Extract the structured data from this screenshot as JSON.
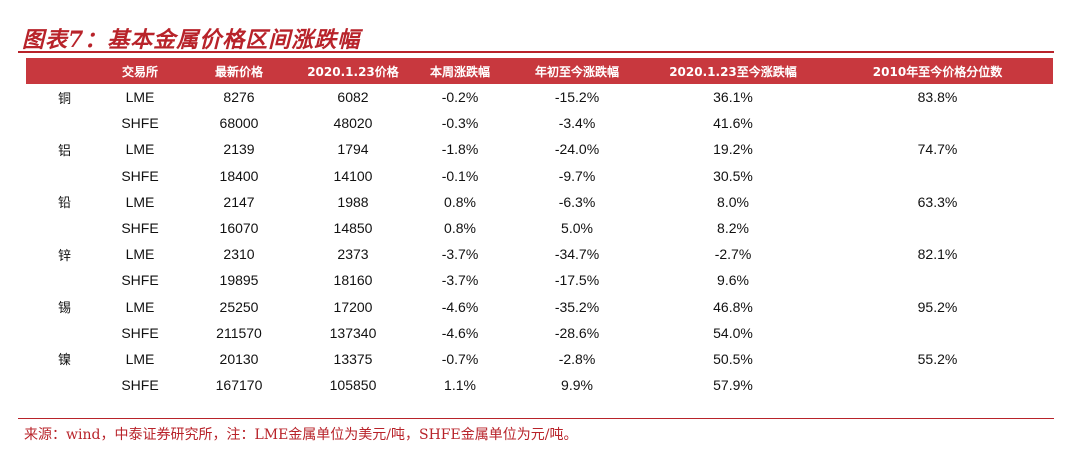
{
  "title": "图表7：基本金属价格区间涨跌幅",
  "columns": [
    "",
    "交易所",
    "最新价格",
    "2020.1.23价格",
    "本周涨跌幅",
    "年初至今涨跌幅",
    "2020.1.23至今涨跌幅",
    "2010年至今价格分位数"
  ],
  "rows": [
    {
      "metal": "铜",
      "exchange": "LME",
      "latest": "8276",
      "p0123": "6082",
      "week": "-0.2%",
      "ytd": "-15.2%",
      "since0123": "36.1%",
      "pct2010": "83.8%"
    },
    {
      "metal": "",
      "exchange": "SHFE",
      "latest": "68000",
      "p0123": "48020",
      "week": "-0.3%",
      "ytd": "-3.4%",
      "since0123": "41.6%",
      "pct2010": ""
    },
    {
      "metal": "铝",
      "exchange": "LME",
      "latest": "2139",
      "p0123": "1794",
      "week": "-1.8%",
      "ytd": "-24.0%",
      "since0123": "19.2%",
      "pct2010": "74.7%"
    },
    {
      "metal": "",
      "exchange": "SHFE",
      "latest": "18400",
      "p0123": "14100",
      "week": "-0.1%",
      "ytd": "-9.7%",
      "since0123": "30.5%",
      "pct2010": ""
    },
    {
      "metal": "铅",
      "exchange": "LME",
      "latest": "2147",
      "p0123": "1988",
      "week": "0.8%",
      "ytd": "-6.3%",
      "since0123": "8.0%",
      "pct2010": "63.3%"
    },
    {
      "metal": "",
      "exchange": "SHFE",
      "latest": "16070",
      "p0123": "14850",
      "week": "0.8%",
      "ytd": "5.0%",
      "since0123": "8.2%",
      "pct2010": ""
    },
    {
      "metal": "锌",
      "exchange": "LME",
      "latest": "2310",
      "p0123": "2373",
      "week": "-3.7%",
      "ytd": "-34.7%",
      "since0123": "-2.7%",
      "pct2010": "82.1%"
    },
    {
      "metal": "",
      "exchange": "SHFE",
      "latest": "19895",
      "p0123": "18160",
      "week": "-3.7%",
      "ytd": "-17.5%",
      "since0123": "9.6%",
      "pct2010": ""
    },
    {
      "metal": "锡",
      "exchange": "LME",
      "latest": "25250",
      "p0123": "17200",
      "week": "-4.6%",
      "ytd": "-35.2%",
      "since0123": "46.8%",
      "pct2010": "95.2%"
    },
    {
      "metal": "",
      "exchange": "SHFE",
      "latest": "211570",
      "p0123": "137340",
      "week": "-4.6%",
      "ytd": "-28.6%",
      "since0123": "54.0%",
      "pct2010": ""
    },
    {
      "metal": "镍",
      "exchange": "LME",
      "latest": "20130",
      "p0123": "13375",
      "week": "-0.7%",
      "ytd": "-2.8%",
      "since0123": "50.5%",
      "pct2010": "55.2%"
    },
    {
      "metal": "",
      "exchange": "SHFE",
      "latest": "167170",
      "p0123": "105850",
      "week": "1.1%",
      "ytd": "9.9%",
      "since0123": "57.9%",
      "pct2010": ""
    }
  ],
  "source": "来源：wind，中泰证券研究所，注：LME金属单位为美元/吨，SHFE金属单位为元/吨。",
  "colors": {
    "accent": "#b8232a",
    "header_bg": "#c8383e"
  }
}
